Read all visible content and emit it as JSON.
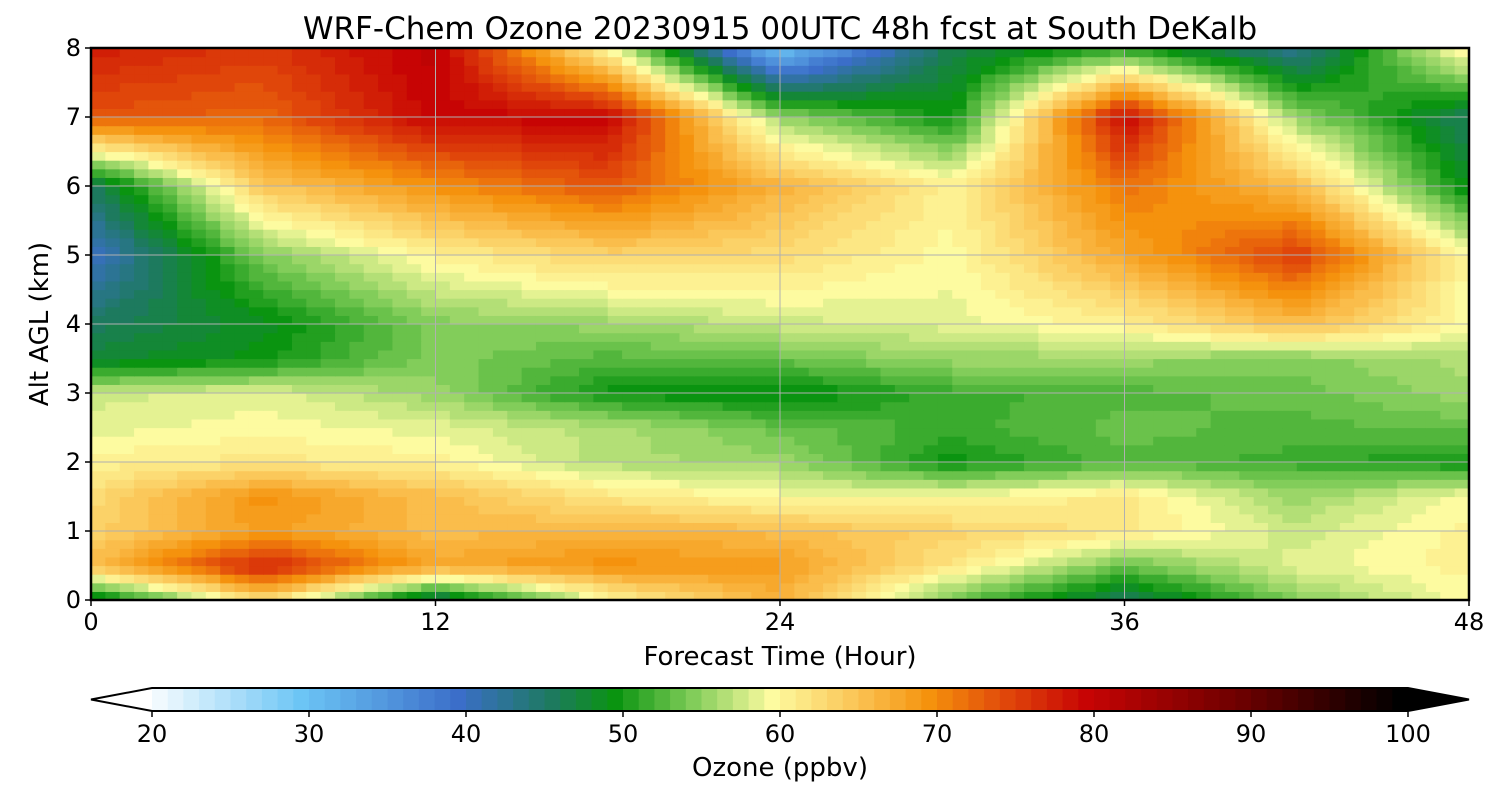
{
  "chart_data": {
    "type": "heatmap",
    "title": "WRF-Chem Ozone  20230915 00UTC 48h fcst at South DeKalb",
    "xlabel": "Forecast Time (Hour)",
    "ylabel": "Alt AGL (km)",
    "xlim": [
      0,
      48
    ],
    "ylim": [
      0,
      8
    ],
    "x_ticks": [
      0,
      12,
      24,
      36,
      48
    ],
    "y_ticks": [
      0,
      1,
      2,
      3,
      4,
      5,
      6,
      7,
      8
    ],
    "grid": true,
    "x": [
      0,
      6,
      12,
      18,
      24,
      30,
      36,
      42,
      48
    ],
    "y": [
      0,
      0.5,
      1,
      1.5,
      2,
      2.5,
      3,
      3.5,
      4,
      5,
      6,
      7,
      8
    ],
    "z": [
      [
        47,
        63,
        45,
        60,
        67,
        54,
        46,
        55,
        60
      ],
      [
        66,
        78,
        68,
        70,
        69,
        62,
        54,
        59,
        61
      ],
      [
        64,
        69,
        66,
        67,
        66,
        64,
        62,
        58,
        61
      ],
      [
        63,
        70,
        66,
        62,
        60,
        60,
        62,
        56,
        60
      ],
      [
        61,
        62,
        61,
        57,
        56,
        50,
        53,
        52,
        50
      ],
      [
        59,
        60,
        59,
        57,
        54,
        52,
        54,
        53,
        54
      ],
      [
        58,
        59,
        56,
        50,
        49,
        52,
        53,
        54,
        56
      ],
      [
        48,
        50,
        55,
        53,
        54,
        56,
        56,
        55,
        57
      ],
      [
        46,
        49,
        55,
        56,
        58,
        59,
        61,
        66,
        60
      ],
      [
        40,
        55,
        61,
        64,
        63,
        60,
        68,
        76,
        60
      ],
      [
        46,
        65,
        70,
        74,
        67,
        61,
        72,
        66,
        49
      ],
      [
        74,
        73,
        80,
        80,
        56,
        50,
        80,
        56,
        46
      ],
      [
        78,
        76,
        81,
        60,
        30,
        47,
        51,
        43,
        62
      ]
    ],
    "colorbar": {
      "label": "Ozone  (ppbv)",
      "min": 20,
      "max": 100,
      "ticks": [
        20,
        30,
        40,
        50,
        60,
        70,
        80,
        90,
        100
      ],
      "extend": "both",
      "colormap_stops": [
        {
          "v": 20,
          "c": "#ffffff"
        },
        {
          "v": 30,
          "c": "#6cc5f5"
        },
        {
          "v": 40,
          "c": "#3b6ec9"
        },
        {
          "v": 46,
          "c": "#1d7a5e"
        },
        {
          "v": 50,
          "c": "#0a9410"
        },
        {
          "v": 55,
          "c": "#82cd5a"
        },
        {
          "v": 60,
          "c": "#fdfba0"
        },
        {
          "v": 65,
          "c": "#fbc85a"
        },
        {
          "v": 70,
          "c": "#f5920d"
        },
        {
          "v": 75,
          "c": "#e0460a"
        },
        {
          "v": 80,
          "c": "#c70404"
        },
        {
          "v": 90,
          "c": "#6b0000"
        },
        {
          "v": 100,
          "c": "#000000"
        }
      ]
    }
  }
}
